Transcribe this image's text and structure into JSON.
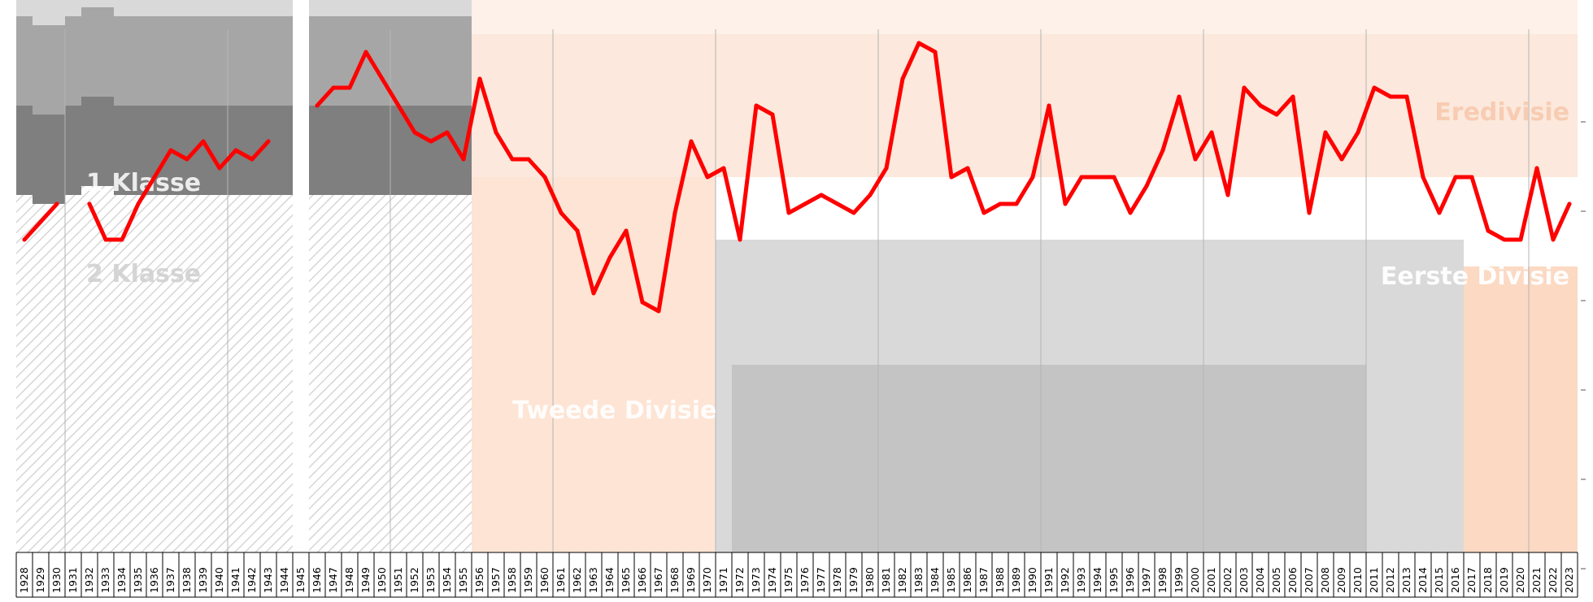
{
  "chart_data": {
    "type": "line",
    "title": "",
    "xlabel": "",
    "ylabel": "",
    "x": [
      1928,
      1929,
      1930,
      1931,
      1932,
      1933,
      1934,
      1935,
      1936,
      1937,
      1938,
      1939,
      1940,
      1941,
      1942,
      1943,
      1944,
      1945,
      1946,
      1947,
      1948,
      1949,
      1950,
      1951,
      1952,
      1953,
      1954,
      1955,
      1956,
      1957,
      1958,
      1959,
      1960,
      1961,
      1962,
      1963,
      1964,
      1965,
      1966,
      1967,
      1968,
      1969,
      1970,
      1971,
      1972,
      1973,
      1974,
      1975,
      1976,
      1977,
      1978,
      1979,
      1980,
      1981,
      1982,
      1983,
      1984,
      1985,
      1986,
      1987,
      1988,
      1989,
      1990,
      1991,
      1992,
      1993,
      1994,
      1995,
      1996,
      1997,
      1998,
      1999,
      2000,
      2001,
      2002,
      2003,
      2004,
      2005,
      2006,
      2007,
      2008,
      2009,
      2010,
      2011,
      2012,
      2013,
      2014,
      2015,
      2016,
      2017,
      2018,
      2019,
      2020,
      2021,
      2022,
      2023
    ],
    "x_tick_labels": [
      "1928",
      "1929",
      "1930",
      "1931",
      "1932",
      "1933",
      "1934",
      "1935",
      "1936",
      "1937",
      "1938",
      "1939",
      "1940",
      "1941",
      "1942",
      "1943",
      "1944",
      "1945",
      "1946",
      "1947",
      "1948",
      "1949",
      "1950",
      "1951",
      "1952",
      "1953",
      "1954",
      "1955",
      "1956",
      "1957",
      "1958",
      "1959",
      "1960",
      "1961",
      "1962",
      "1963",
      "1964",
      "1965",
      "1966",
      "1967",
      "1968",
      "1969",
      "1970",
      "1971",
      "1972",
      "1973",
      "1974",
      "1975",
      "1976",
      "1977",
      "1978",
      "1979",
      "1980",
      "1981",
      "1982",
      "1983",
      "1984",
      "1985",
      "1986",
      "1987",
      "1988",
      "1989",
      "1990",
      "1991",
      "1992",
      "1993",
      "1994",
      "1995",
      "1996",
      "1997",
      "1998",
      "1999",
      "2000",
      "2001",
      "2002",
      "2003",
      "2004",
      "2005",
      "2006",
      "2007",
      "2008",
      "2009",
      "2010",
      "2011",
      "2012",
      "2013",
      "2014",
      "2015",
      "2016",
      "2017",
      "2018",
      "2019",
      "2020",
      "2021",
      "2022",
      "2023"
    ],
    "series": [
      {
        "name": "",
        "color": "#ff0000",
        "values": [
          23,
          21,
          19,
          null,
          19,
          23,
          23,
          19,
          16,
          13,
          14,
          12,
          15,
          13,
          14,
          12,
          null,
          null,
          8,
          6,
          6,
          2,
          5,
          8,
          11,
          12,
          11,
          14,
          5,
          11,
          14,
          14,
          16,
          20,
          22,
          29,
          25,
          22,
          30,
          31,
          20,
          12,
          16,
          15,
          23,
          8,
          9,
          20,
          19,
          18,
          19,
          20,
          18,
          15,
          5,
          1,
          2,
          16,
          15,
          20,
          19,
          19,
          16,
          8,
          19,
          16,
          16,
          16,
          20,
          17,
          13,
          7,
          14,
          11,
          18,
          6,
          8,
          9,
          7,
          20,
          11,
          14,
          11,
          6,
          7,
          7,
          16,
          20,
          16,
          16,
          22,
          23,
          23,
          15,
          23,
          19
        ]
      }
    ],
    "division_bands": [
      {
        "name": "Eredivisie",
        "color": "#fbe0d0"
      },
      {
        "name": "Eerste Divisie",
        "color": "#fbe0d0"
      },
      {
        "name": "Tweede Divisie",
        "color": "#fbe0d0"
      },
      {
        "name": "1 Klasse",
        "color": "#cccccc"
      },
      {
        "name": "2 Klasse",
        "color": "#cccccc"
      }
    ],
    "grid": "vertical lines every 10 seasons",
    "colors": {
      "line": "#ff0000",
      "pre1956_top": "#d9d9d9",
      "pre1956_mid": "#a6a6a6",
      "pre1956_low": "#7f7f7f",
      "post1956_band": "#fbe0d0",
      "hatch": "#dddddd"
    }
  }
}
